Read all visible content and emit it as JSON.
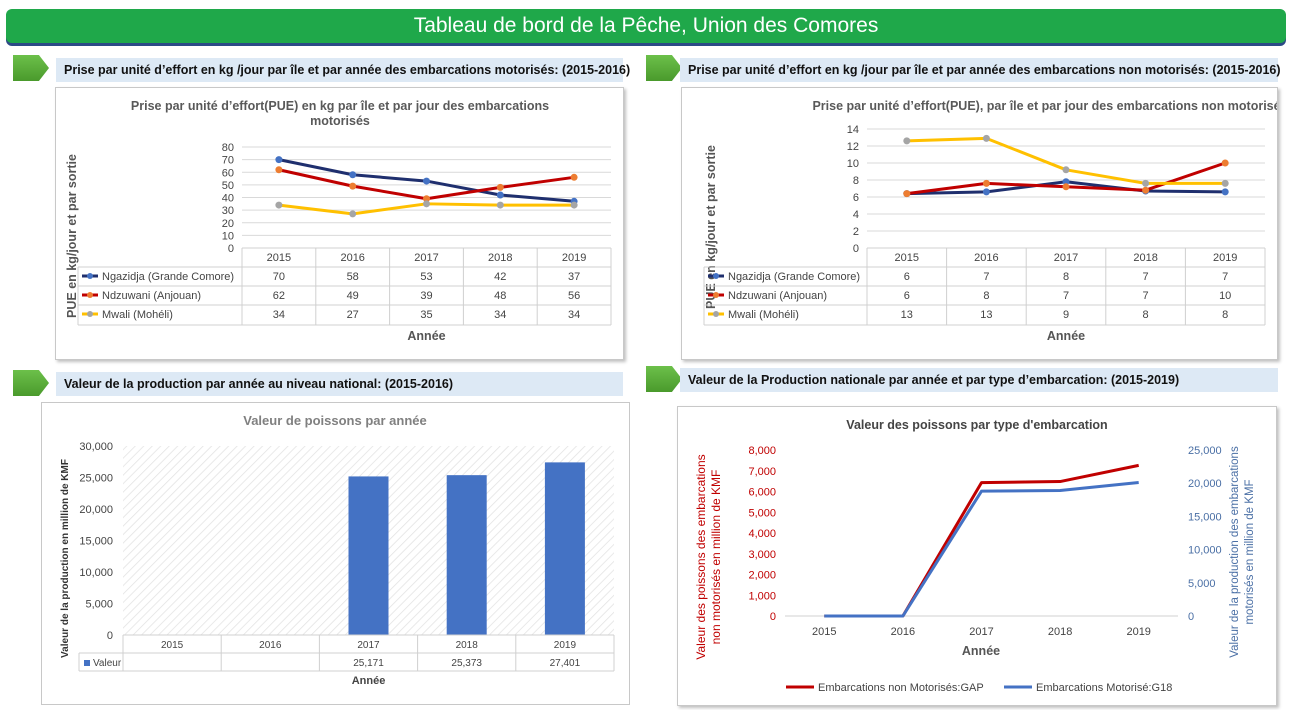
{
  "header": {
    "title": "Tableau de bord de la Pêche,  Union des Comores"
  },
  "sections": {
    "s1": "Prise par unité d’effort en kg /jour par île et par année des embarcations motorisés: (2015-2016)",
    "s2": "Prise par unité d’effort en kg /jour par île et par année des embarcations non motorisés: (2015-2016)",
    "s3": "Valeur de la production par année au niveau national: (2015-2016)",
    "s4": "Valeur de la Production nationale par année et  par type d’embarcation: (2015-2019)"
  },
  "chart_data": [
    {
      "type": "line",
      "title": "Prise par unité d’effort(PUE) en kg par île et par jour des embarcations motorisés",
      "ylabel": "PUE en kg/jour et par sortie",
      "xlabel": "Année",
      "categories": [
        "2015",
        "2016",
        "2017",
        "2018",
        "2019"
      ],
      "ylim": [
        0,
        80
      ],
      "yticks": [
        "0",
        "10",
        "20",
        "30",
        "40",
        "50",
        "60",
        "70",
        "80"
      ],
      "grid": true,
      "legend": "data-table",
      "series": [
        {
          "name": "Ngazidja (Grande Comore)",
          "color": "#1f2f6e",
          "values": [
            70,
            58,
            53,
            42,
            37
          ],
          "table": [
            "70",
            "58",
            "53",
            "42",
            "37"
          ]
        },
        {
          "name": "Ndzuwani (Anjouan)",
          "color": "#c00000",
          "values": [
            62,
            49,
            39,
            48,
            56
          ],
          "table": [
            "62",
            "49",
            "39",
            "48",
            "56"
          ]
        },
        {
          "name": "Mwali (Mohéli)",
          "color": "#ffc000",
          "values": [
            34,
            27,
            35,
            34,
            34
          ],
          "table": [
            "34",
            "27",
            "35",
            "34",
            "34"
          ]
        }
      ]
    },
    {
      "type": "line",
      "title": "Prise par unité d’effort(PUE), par île  et par jour des embarcations non motorisés",
      "ylabel": "PUE en kg/jour et par sortie",
      "xlabel": "Année",
      "categories": [
        "2015",
        "2016",
        "2017",
        "2018",
        "2019"
      ],
      "ylim": [
        0,
        14
      ],
      "yticks": [
        "0",
        "2",
        "4",
        "6",
        "8",
        "10",
        "12",
        "14"
      ],
      "grid": true,
      "legend": "data-table",
      "series": [
        {
          "name": "Ngazidja (Grande Comore)",
          "color": "#1f2f6e",
          "values": [
            6.4,
            6.6,
            7.8,
            6.7,
            6.6
          ],
          "table": [
            "6",
            "7",
            "8",
            "7",
            "7"
          ]
        },
        {
          "name": "Ndzuwani (Anjouan)",
          "color": "#c00000",
          "values": [
            6.4,
            7.6,
            7.2,
            6.8,
            10.0
          ],
          "table": [
            "6",
            "8",
            "7",
            "7",
            "10"
          ]
        },
        {
          "name": "Mwali (Mohéli)",
          "color": "#ffc000",
          "values": [
            12.6,
            12.9,
            9.2,
            7.6,
            7.6
          ],
          "table": [
            "13",
            "13",
            "9",
            "8",
            "8"
          ]
        }
      ]
    },
    {
      "type": "bar",
      "title": "Valeur de poissons par année",
      "ylabel": "Valeur de la production  en million de KMF",
      "xlabel": "Année",
      "categories": [
        "2015",
        "2016",
        "2017",
        "2018",
        "2019"
      ],
      "ylim": [
        0,
        30000
      ],
      "yticks": [
        "0",
        "5,000",
        "10,000",
        "15,000",
        "20,000",
        "25,000",
        "30,000"
      ],
      "legend": "data-table",
      "series": [
        {
          "name": "Valeur",
          "color": "#4472c4",
          "values": [
            null,
            null,
            25171,
            25373,
            27401
          ],
          "table": [
            "",
            "",
            "25,171",
            "25,373",
            "27,401"
          ]
        }
      ]
    },
    {
      "type": "line",
      "title": "Valeur des poissons par type d'embarcation",
      "xlabel": "Année",
      "categories": [
        "2015",
        "2016",
        "2017",
        "2018",
        "2019"
      ],
      "y_left": {
        "label": "Valeur des poissons des embarcations non motorisés en million de KMF",
        "ylim": [
          0,
          8000
        ],
        "ticks": [
          "0",
          "1,000",
          "2,000",
          "3,000",
          "4,000",
          "5,000",
          "6,000",
          "7,000",
          "8,000"
        ],
        "color": "#c00000"
      },
      "y_right": {
        "label": "Valeur de la production des embarcations motorisés en  million de KMF",
        "ylim": [
          0,
          25000
        ],
        "ticks": [
          "0",
          "5,000",
          "10,000",
          "15,000",
          "20,000",
          "25,000"
        ],
        "color": "#4a6fa5"
      },
      "legend": "bottom",
      "series": [
        {
          "name": "Embarcations non Motorisés:GAP",
          "color": "#c00000",
          "axis": "left",
          "values": [
            0,
            0,
            6430,
            6480,
            7260
          ]
        },
        {
          "name": "Embarcations Motorisé:G18",
          "color": "#4472c4",
          "axis": "right",
          "values": [
            0,
            0,
            18800,
            18900,
            20100
          ]
        }
      ]
    }
  ]
}
